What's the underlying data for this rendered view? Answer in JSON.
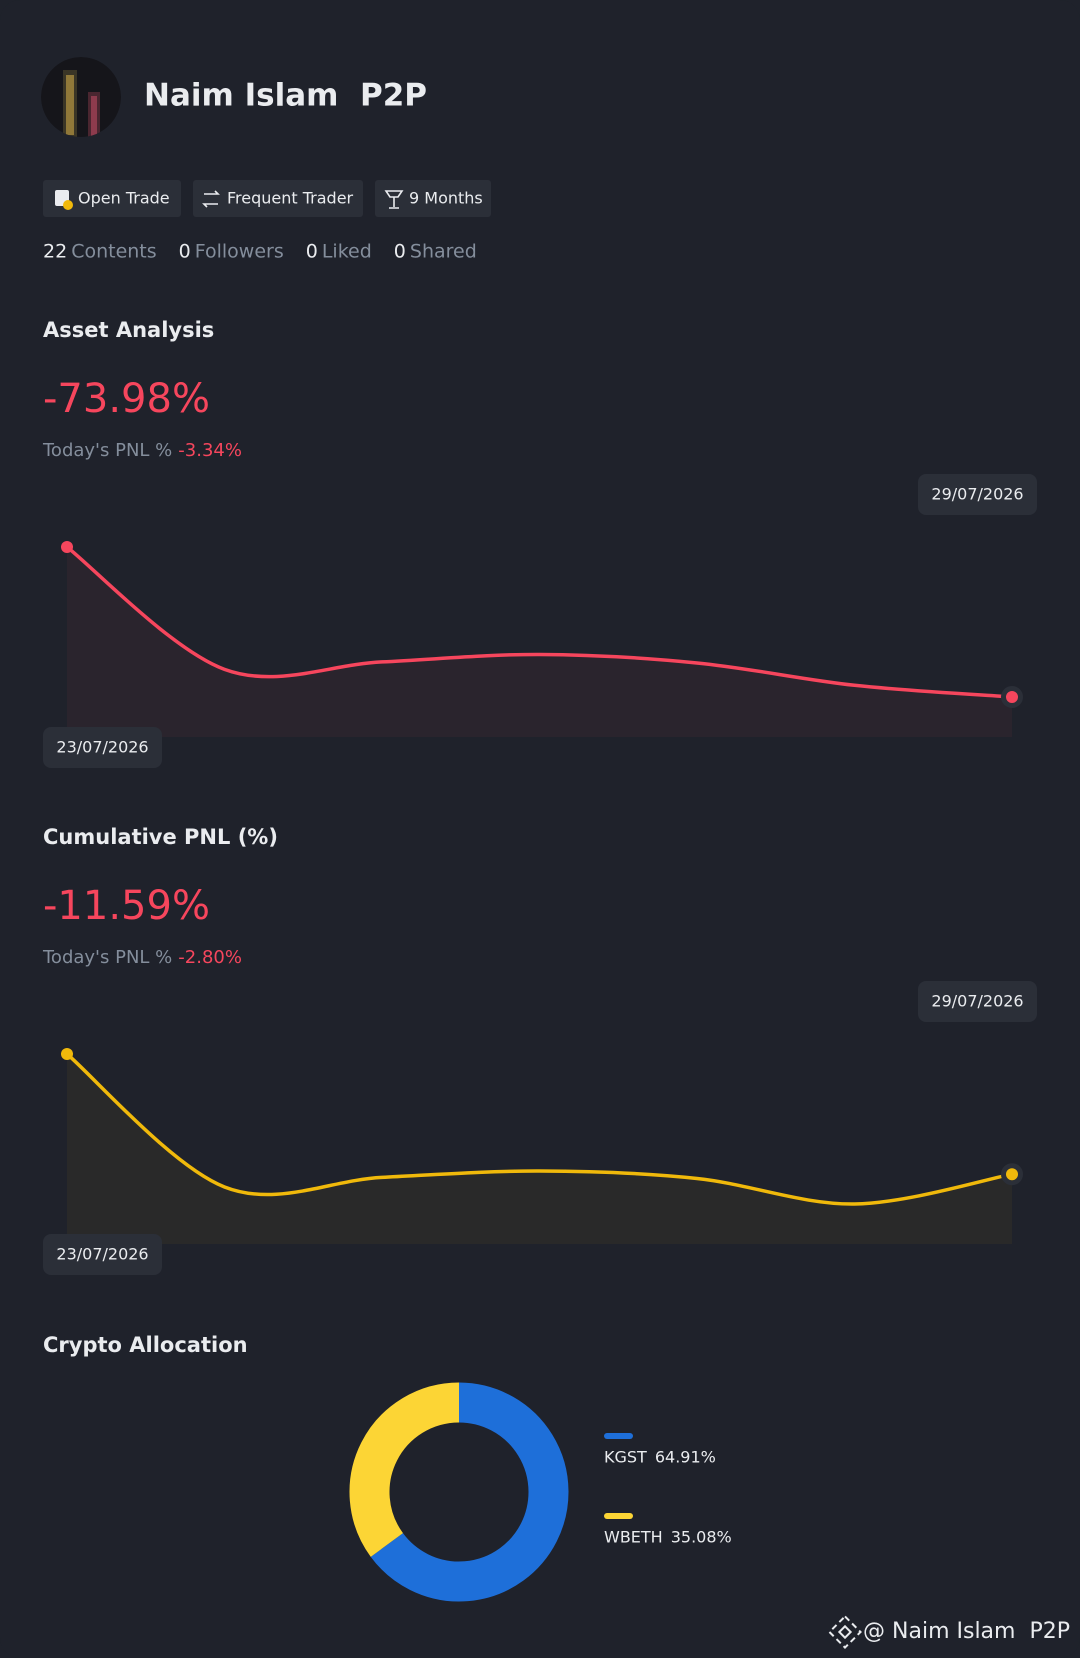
{
  "profile": {
    "name": "Naim Islam  P2P",
    "badges": [
      "Open Trade",
      "Frequent Trader",
      "9 Months"
    ],
    "stats": [
      {
        "value": 22,
        "label": "Contents"
      },
      {
        "value": 0,
        "label": "Followers"
      },
      {
        "value": 0,
        "label": "Liked"
      },
      {
        "value": 0,
        "label": "Shared"
      }
    ]
  },
  "asset_analysis": {
    "title": "Asset Analysis",
    "value": "-73.98%",
    "today_label": "Today's PNL %",
    "today_value": "-3.34%",
    "chart": {
      "type": "line",
      "x": [
        "23/07/2026",
        null,
        null,
        null,
        null,
        null,
        "29/07/2026"
      ],
      "series": [
        {
          "color": "#f6465d",
          "values": [
            0,
            -23,
            -21.6,
            -20.2,
            -21.8,
            -26,
            -28.2
          ]
        }
      ]
    }
  },
  "cumulative_pnl": {
    "title": "Cumulative PNL (%)",
    "value": "-11.59%",
    "today_label": "Today's PNL %",
    "today_value": "-2.80%",
    "chart": {
      "type": "line",
      "x": [
        "23/07/2026",
        null,
        null,
        null,
        null,
        null,
        "29/07/2026"
      ],
      "series": [
        {
          "color": "#f0b90b",
          "values": [
            0,
            -25,
            -23.2,
            -22,
            -23.4,
            -28.2,
            -22.6
          ]
        }
      ]
    }
  },
  "crypto_allocation": {
    "title": "Crypto Allocation",
    "chart": {
      "type": "pie",
      "categories": [
        "KGST",
        "WBETH"
      ],
      "values": [
        64.91,
        35.08
      ],
      "value_labels": [
        "64.91%",
        "35.08%"
      ],
      "colors": [
        "#1e6fd9",
        "#fcd535"
      ]
    }
  },
  "watermark": "@ Naim Islam  P2P"
}
